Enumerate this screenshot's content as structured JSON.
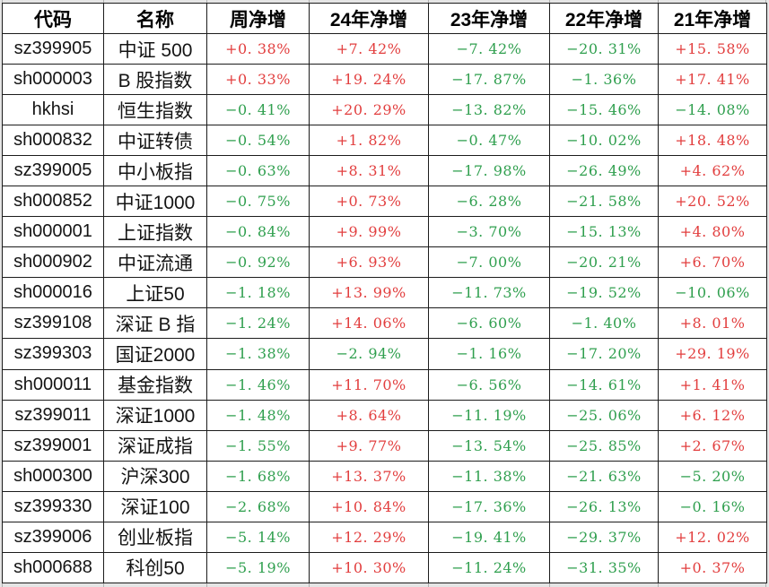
{
  "colors": {
    "positive": "#e23e3e",
    "negative": "#2f9f4e",
    "gridline": "#1c1c1c",
    "canvas_background": "#e5e5e5",
    "cell_background": "#ffffff"
  },
  "chart_data": {
    "type": "table",
    "columns": [
      "代码",
      "名称",
      "周净增",
      "24年净增",
      "23年净增",
      "22年净增",
      "21年净增"
    ],
    "rows": [
      [
        "sz399905",
        "中证 500",
        "+0.38%",
        "+7.42%",
        "-7.42%",
        "-20.31%",
        "+15.58%"
      ],
      [
        "sh000003",
        "B 股指数",
        "+0.33%",
        "+19.24%",
        "-17.87%",
        "-1.36%",
        "+17.41%"
      ],
      [
        "hkhsi",
        "恒生指数",
        "-0.41%",
        "+20.29%",
        "-13.82%",
        "-15.46%",
        "-14.08%"
      ],
      [
        "sh000832",
        "中证转债",
        "-0.54%",
        "+1.82%",
        "-0.47%",
        "-10.02%",
        "+18.48%"
      ],
      [
        "sz399005",
        "中小板指",
        "-0.63%",
        "+8.31%",
        "-17.98%",
        "-26.49%",
        "+4.62%"
      ],
      [
        "sh000852",
        "中证1000",
        "-0.75%",
        "+0.73%",
        "-6.28%",
        "-21.58%",
        "+20.52%"
      ],
      [
        "sh000001",
        "上证指数",
        "-0.84%",
        "+9.99%",
        "-3.70%",
        "-15.13%",
        "+4.80%"
      ],
      [
        "sh000902",
        "中证流通",
        "-0.92%",
        "+6.93%",
        "-7.00%",
        "-20.21%",
        "+6.70%"
      ],
      [
        "sh000016",
        "上证50",
        "-1.18%",
        "+13.99%",
        "-11.73%",
        "-19.52%",
        "-10.06%"
      ],
      [
        "sz399108",
        "深证 B 指",
        "-1.24%",
        "+14.06%",
        "-6.60%",
        "-1.40%",
        "+8.01%"
      ],
      [
        "sz399303",
        "国证2000",
        "-1.38%",
        "-2.94%",
        "-1.16%",
        "-17.20%",
        "+29.19%"
      ],
      [
        "sh000011",
        "基金指数",
        "-1.46%",
        "+11.70%",
        "-6.56%",
        "-14.61%",
        "+1.41%"
      ],
      [
        "sz399011",
        "深证1000",
        "-1.48%",
        "+8.64%",
        "-11.19%",
        "-25.06%",
        "+6.12%"
      ],
      [
        "sz399001",
        "深证成指",
        "-1.55%",
        "+9.77%",
        "-13.54%",
        "-25.85%",
        "+2.67%"
      ],
      [
        "sh000300",
        "沪深300",
        "-1.68%",
        "+13.37%",
        "-11.38%",
        "-21.63%",
        "-5.20%"
      ],
      [
        "sz399330",
        "深证100",
        "-2.68%",
        "+10.84%",
        "-17.36%",
        "-26.13%",
        "-0.16%"
      ],
      [
        "sz399006",
        "创业板指",
        "-5.14%",
        "+12.29%",
        "-19.41%",
        "-29.37%",
        "+12.02%"
      ],
      [
        "sh000688",
        "科创50",
        "-5.19%",
        "+10.30%",
        "-11.24%",
        "-31.35%",
        "+0.37%"
      ]
    ],
    "color_coding": "positive values shown in red, negative values shown in green",
    "legend_position": "none",
    "title": ""
  }
}
